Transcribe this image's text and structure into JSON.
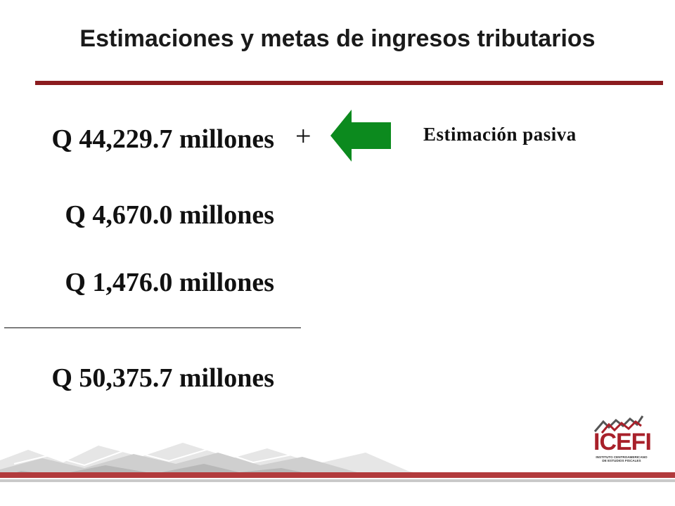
{
  "slide": {
    "title": "Estimaciones y metas de ingresos tributarios",
    "plus_sign": "+",
    "passive_label": "Estimación pasiva",
    "amounts": [
      "Q 44,229.7 millones",
      "Q 4,670.0 millones",
      "Q 1,476.0 millones"
    ],
    "total": "Q 50,375.7 millones"
  },
  "logo": {
    "name": "ICEFI",
    "subtitle": "INSTITUTO CENTROAMERICANO DE ESTUDIOS FISCALES"
  },
  "colors": {
    "accent": "#8b1c1f",
    "arrow": "#0c8a1e",
    "logo": "#a8202a",
    "footer_band": "#b23a3c"
  }
}
